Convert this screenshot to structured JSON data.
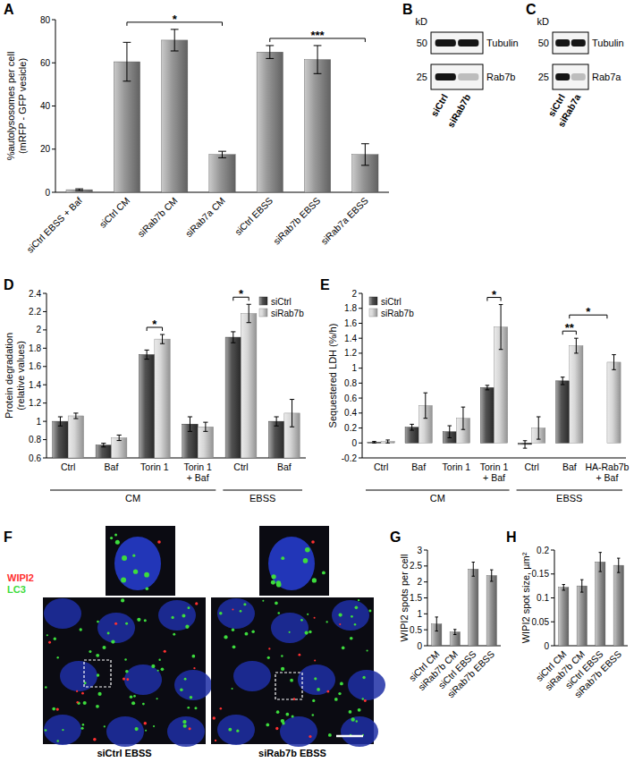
{
  "chart_data": [
    {
      "panel": "A",
      "type": "bar",
      "y_label": [
        "%autolysosomes per cell",
        "(mRFP - GFP vesicle)"
      ],
      "categories": [
        "siCtrl EBSS + Baf",
        "siCtrl CM",
        "siRab7b CM",
        "siRab7a CM",
        "siCtrl EBSS",
        "siRab7b EBSS",
        "siRab7a EBSS"
      ],
      "values": [
        1.2,
        60.5,
        70.5,
        17.5,
        65,
        61.5,
        17.5
      ],
      "errors": [
        0.4,
        9,
        5,
        1.5,
        3,
        6.5,
        5
      ],
      "color": "#8a8a8a",
      "ylim": [
        0,
        80
      ],
      "yticks": [
        0,
        20,
        40,
        60,
        80
      ],
      "significance": [
        {
          "text": "*",
          "from": 1,
          "to": 3
        },
        {
          "text": "***",
          "from": 4,
          "to": 6
        }
      ]
    },
    {
      "panel": "D",
      "type": "bar",
      "y_label": [
        "Protein degradation",
        "(relative values)"
      ],
      "categories": [
        "Ctrl",
        "Baf",
        "Torin 1",
        "Torin 1 + Baf",
        "Ctrl",
        "Baf"
      ],
      "groups": [
        {
          "label": "CM",
          "from": 0,
          "to": 3
        },
        {
          "label": "EBSS",
          "from": 4,
          "to": 5
        }
      ],
      "series": [
        {
          "name": "siCtrl",
          "color": "#3a3a3a",
          "values": [
            1.0,
            0.74,
            1.73,
            0.97,
            1.92,
            1.0
          ],
          "errors": [
            0.05,
            0.02,
            0.05,
            0.08,
            0.06,
            0.05
          ]
        },
        {
          "name": "siRab7b",
          "color": "#d0d0d0",
          "values": [
            1.06,
            0.82,
            1.9,
            0.94,
            2.18,
            1.09
          ],
          "errors": [
            0.03,
            0.03,
            0.05,
            0.05,
            0.1,
            0.15
          ]
        }
      ],
      "ylim": [
        0.6,
        2.4
      ],
      "yticks": [
        0.6,
        0.8,
        1,
        1.2,
        1.4,
        1.6,
        1.8,
        2,
        2.2,
        2.4
      ],
      "legend": "top-right",
      "significance": [
        {
          "text": "*",
          "from": 2,
          "to": 2
        },
        {
          "text": "*",
          "from": 4,
          "to": 4
        }
      ]
    },
    {
      "panel": "E",
      "type": "bar",
      "y_label": [
        "Sequestered LDH (%/h)"
      ],
      "categories": [
        "Ctrl",
        "Baf",
        "Torin 1",
        "Torin 1 + Baf",
        "Ctrl",
        "Baf",
        "HA-Rab7b + Baf"
      ],
      "groups": [
        {
          "label": "CM",
          "from": 0,
          "to": 3
        },
        {
          "label": "EBSS",
          "from": 4,
          "to": 6
        }
      ],
      "series": [
        {
          "name": "siCtrl",
          "color": "#3a3a3a",
          "values": [
            0.01,
            0.21,
            0.15,
            0.74,
            -0.02,
            0.83,
            null
          ],
          "errors": [
            0.01,
            0.04,
            0.08,
            0.03,
            0.05,
            0.05,
            null
          ]
        },
        {
          "name": "siRab7b",
          "color": "#d0d0d0",
          "values": [
            0.02,
            0.5,
            0.33,
            1.55,
            0.2,
            1.3,
            1.08
          ],
          "errors": [
            0.02,
            0.17,
            0.15,
            0.3,
            0.15,
            0.1,
            0.1
          ]
        }
      ],
      "ylim": [
        -0.2,
        2
      ],
      "yticks": [
        -0.2,
        0,
        0.2,
        0.4,
        0.6,
        0.8,
        1,
        1.2,
        1.4,
        1.6,
        1.8,
        2
      ],
      "legend": "top-left",
      "significance": [
        {
          "text": "*",
          "from": 3,
          "to": 3
        },
        {
          "text": "**",
          "from": 5,
          "to": 5
        },
        {
          "text": "*",
          "from": 5,
          "to": 6
        }
      ]
    },
    {
      "panel": "G",
      "type": "bar",
      "y_label": [
        "WIPI2 spots per cell"
      ],
      "categories": [
        "siCtrl CM",
        "siRab7b CM",
        "siCtrl EBSS",
        "siRab7b EBSS"
      ],
      "values": [
        0.68,
        0.43,
        2.4,
        2.2
      ],
      "errors": [
        0.22,
        0.08,
        0.22,
        0.18
      ],
      "color": "#8a8a8a",
      "ylim": [
        0,
        3
      ],
      "yticks": [
        0,
        0.5,
        1,
        1.5,
        2,
        2.5,
        3
      ]
    },
    {
      "panel": "H",
      "type": "bar",
      "y_label": [
        "WIPI2 spot size, µm²"
      ],
      "categories": [
        "siCtrl CM",
        "siRab7b CM",
        "siCtrl EBSS",
        "siRab7b EBSS"
      ],
      "values": [
        0.122,
        0.125,
        0.175,
        0.168
      ],
      "errors": [
        0.006,
        0.013,
        0.02,
        0.015
      ],
      "color": "#8a8a8a",
      "ylim": [
        0,
        0.2
      ],
      "yticks": [
        0,
        0.05,
        0.1,
        0.15,
        0.2
      ]
    }
  ],
  "blots": [
    {
      "panel": "B",
      "unit": "kD",
      "markers": [
        50,
        25
      ],
      "bands": [
        "Tubulin",
        "Rab7b"
      ],
      "lanes": [
        "siCtrl",
        "siRab7b"
      ]
    },
    {
      "panel": "C",
      "unit": "kD",
      "markers": [
        50,
        25
      ],
      "bands": [
        "Tubulin",
        "Rab7a"
      ],
      "lanes": [
        "siCtrl",
        "siRab7a"
      ]
    }
  ],
  "image": {
    "panel": "F",
    "channels": [
      {
        "name": "WIPI2",
        "color": "#ff3030"
      },
      {
        "name": "LC3",
        "color": "#3ddc3d"
      }
    ],
    "conditions": [
      "siCtrl EBSS",
      "siRab7b EBSS"
    ]
  }
}
